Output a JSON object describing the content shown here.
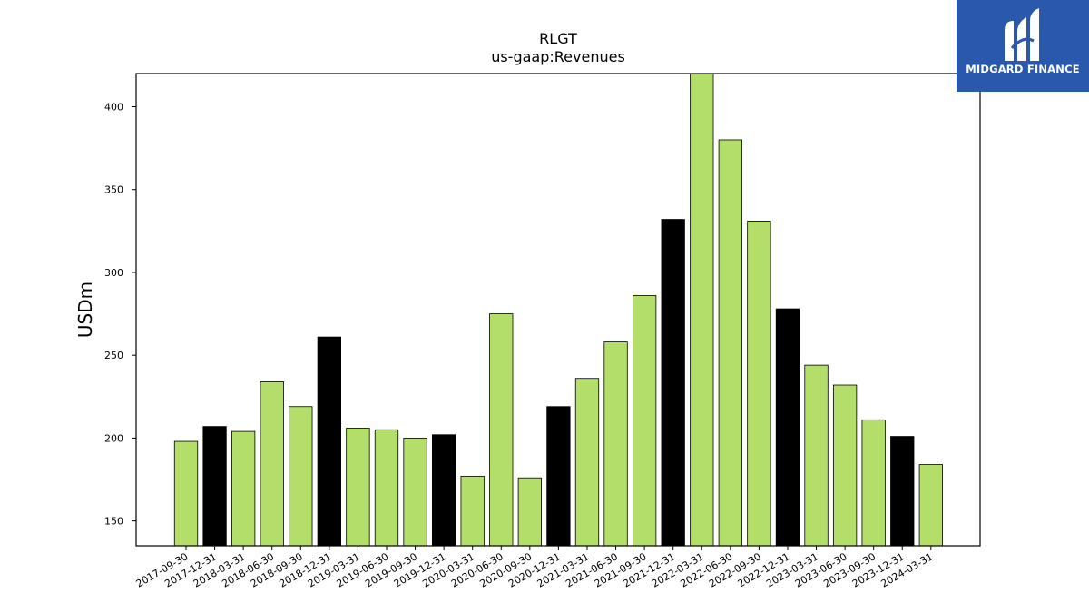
{
  "brand": {
    "name": "MIDGARD FINANCE",
    "bg_color": "#2a58ad"
  },
  "chart_data": {
    "type": "bar",
    "title": "RLGT",
    "subtitle": "us-gaap:Revenues",
    "xlabel": "",
    "ylabel": "USDm",
    "ylim": [
      135,
      420
    ],
    "yticks": [
      150,
      200,
      250,
      300,
      350,
      400
    ],
    "grid": false,
    "colors": {
      "quarter": "#b3de69",
      "fiscal_year_end": "#000000"
    },
    "categories": [
      "2017-09-30",
      "2017-12-31",
      "2018-03-31",
      "2018-06-30",
      "2018-09-30",
      "2018-12-31",
      "2019-03-31",
      "2019-06-30",
      "2019-09-30",
      "2019-12-31",
      "2020-03-31",
      "2020-06-30",
      "2020-09-30",
      "2020-12-31",
      "2021-03-31",
      "2021-06-30",
      "2021-09-30",
      "2021-12-31",
      "2022-03-31",
      "2022-06-30",
      "2022-09-30",
      "2022-12-31",
      "2023-03-31",
      "2023-06-30",
      "2023-09-30",
      "2023-12-31",
      "2024-03-31"
    ],
    "values": [
      198,
      207,
      204,
      234,
      219,
      261,
      206,
      205,
      200,
      202,
      177,
      275,
      176,
      219,
      236,
      258,
      286,
      332,
      420,
      380,
      331,
      278,
      244,
      232,
      211,
      201,
      184
    ],
    "highlighted": [
      false,
      true,
      false,
      false,
      false,
      true,
      false,
      false,
      false,
      true,
      false,
      false,
      false,
      true,
      false,
      false,
      false,
      true,
      false,
      false,
      false,
      true,
      false,
      false,
      false,
      true,
      false
    ]
  }
}
